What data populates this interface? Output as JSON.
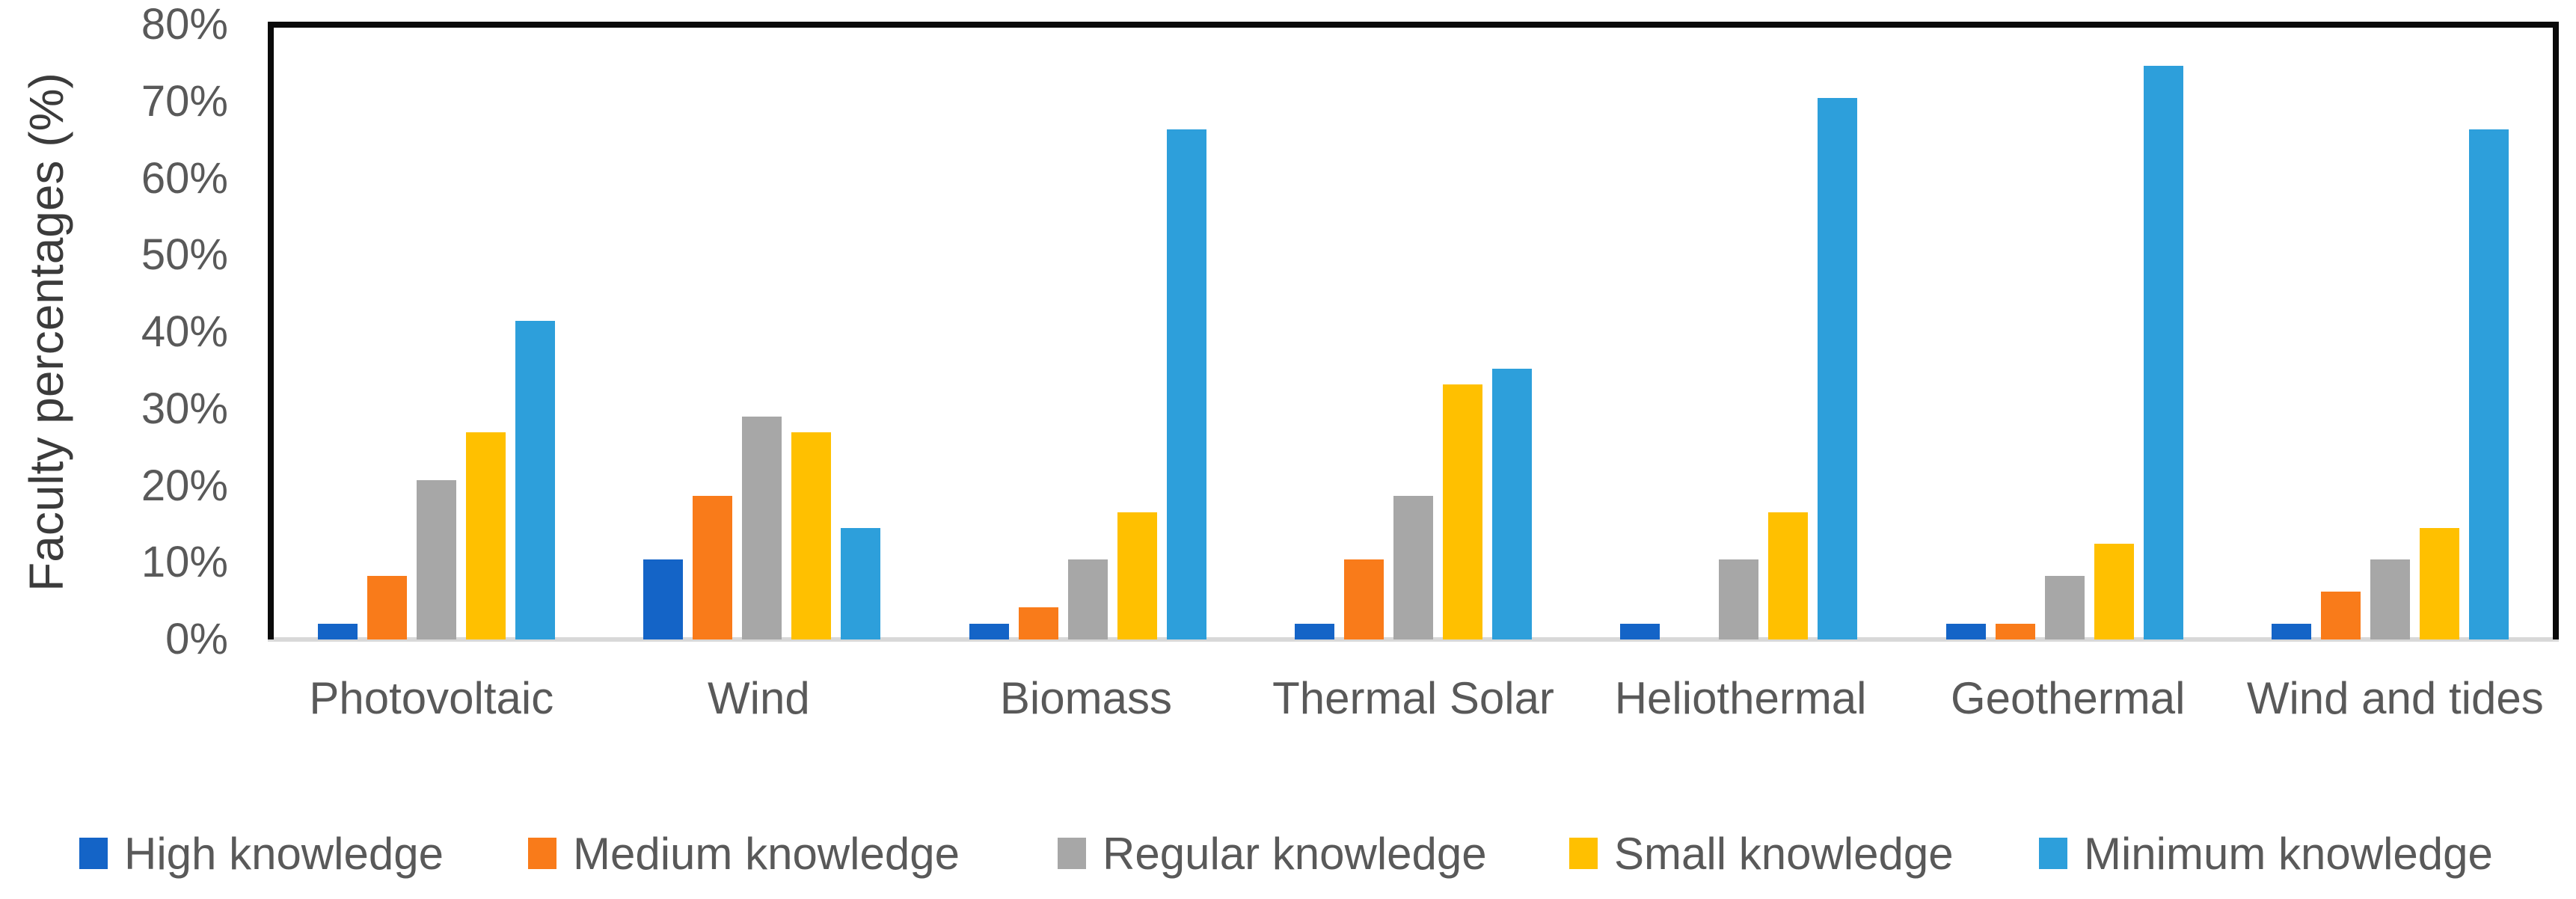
{
  "chart_data": {
    "type": "bar",
    "title": "",
    "xlabel": "",
    "ylabel": "Faculty percentages (%)",
    "ylim": [
      0,
      80
    ],
    "yticks": [
      "80%",
      "70%",
      "60%",
      "50%",
      "40%",
      "30%",
      "20%",
      "10%",
      "0%"
    ],
    "grid": false,
    "legend_position": "bottom",
    "categories": [
      "Photovoltaic",
      "Wind",
      "Biomass",
      "Thermal Solar",
      "Heliothermal",
      "Geothermal",
      "Wind and tides"
    ],
    "series": [
      {
        "name": "High knowledge",
        "color": "#1464c7",
        "values": [
          2.08,
          10.42,
          2.08,
          2.08,
          2.08,
          2.08,
          2.08
        ]
      },
      {
        "name": "Medium knowledge",
        "color": "#f97b1a",
        "values": [
          8.33,
          18.75,
          4.17,
          10.42,
          0,
          2.08,
          6.25
        ]
      },
      {
        "name": "Regular knowledge",
        "color": "#a7a7a7",
        "values": [
          20.83,
          29.17,
          10.42,
          18.75,
          10.42,
          8.33,
          10.42
        ]
      },
      {
        "name": "Small knowledge",
        "color": "#ffc000",
        "values": [
          27.08,
          27.08,
          16.67,
          33.33,
          16.67,
          12.5,
          14.58
        ]
      },
      {
        "name": "Minimum knowledge",
        "color": "#2d9fdb",
        "values": [
          41.67,
          14.58,
          66.67,
          35.42,
          70.83,
          75.0,
          66.67
        ]
      }
    ],
    "axis_colors": {
      "border": "#0a0a0a",
      "baseline": "#d8d8d8",
      "tick_text": "#595959",
      "title_text": "#3b3b3b"
    }
  }
}
